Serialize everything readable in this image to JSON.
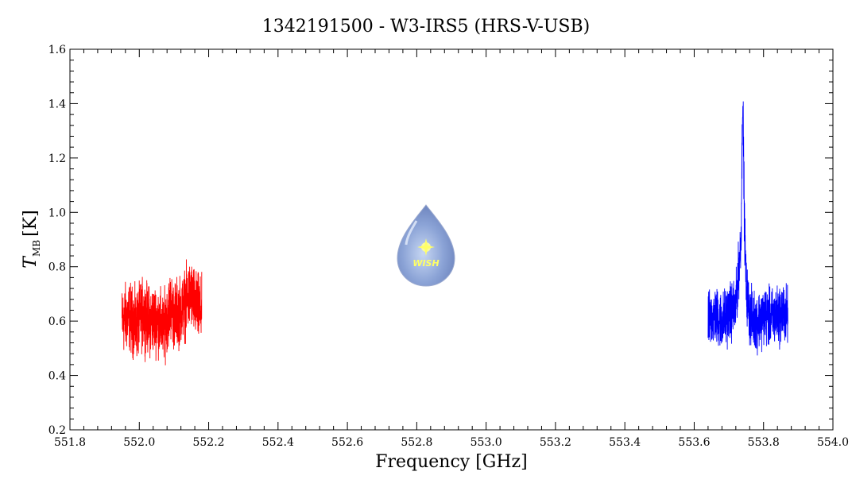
{
  "chart_data": {
    "type": "line",
    "title": "1342191500 - W3-IRS5 (HRS-V-USB)",
    "xlabel": "Frequency [GHz]",
    "ylabel_main": "T",
    "ylabel_sub": "MB",
    "ylabel_unit": "[K]",
    "xlim": [
      551.8,
      554.0
    ],
    "ylim": [
      0.2,
      1.6
    ],
    "x_ticks": [
      "551.8",
      "552.0",
      "552.2",
      "552.4",
      "552.6",
      "552.8",
      "553.0",
      "553.2",
      "553.4",
      "553.6",
      "553.8",
      "554.0"
    ],
    "y_ticks": [
      "0.2",
      "0.4",
      "0.6",
      "0.8",
      "1.0",
      "1.2",
      "1.4",
      "1.6"
    ],
    "grid": false,
    "series": [
      {
        "color": "#ff0000",
        "x": [
          551.95,
          551.97,
          551.99,
          552.01,
          552.03,
          552.05,
          552.07,
          552.09,
          552.1,
          552.12,
          552.14,
          552.15,
          552.16,
          552.18
        ],
        "y": [
          0.6,
          0.62,
          0.58,
          0.63,
          0.6,
          0.61,
          0.57,
          0.66,
          0.62,
          0.64,
          0.68,
          0.7,
          0.66,
          0.63
        ],
        "noise": 0.13
      },
      {
        "color": "#0000ff",
        "x": [
          553.64,
          553.66,
          553.68,
          553.7,
          553.72,
          553.735,
          553.74,
          553.745,
          553.75,
          553.76,
          553.78,
          553.8,
          553.82,
          553.84,
          553.86,
          553.87
        ],
        "y": [
          0.6,
          0.62,
          0.6,
          0.63,
          0.65,
          0.9,
          1.45,
          0.95,
          0.72,
          0.62,
          0.6,
          0.62,
          0.61,
          0.62,
          0.63,
          0.62
        ],
        "noise": 0.11
      }
    ]
  },
  "logo": {
    "text": "WISH",
    "icon": "water-drop-star-icon"
  }
}
